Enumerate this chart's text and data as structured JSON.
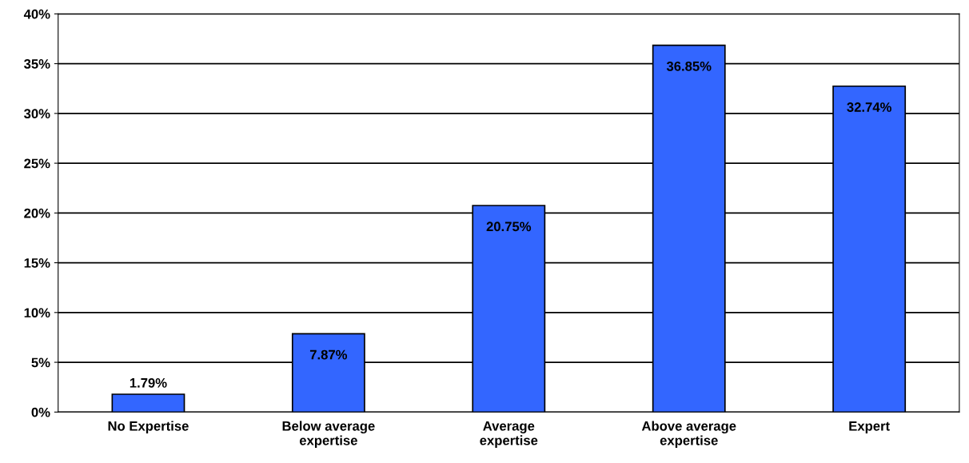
{
  "chart_data": {
    "type": "bar",
    "categories": [
      "No Expertise",
      "Below average expertise",
      "Average expertise",
      "Above average expertise",
      "Expert"
    ],
    "values": [
      1.79,
      7.87,
      20.75,
      36.85,
      32.74
    ],
    "value_labels": [
      "1.79%",
      "7.87%",
      "20.75%",
      "36.85%",
      "32.74%"
    ],
    "color": "#3366ff",
    "ylim": [
      0,
      40
    ],
    "yticks": [
      {
        "value": 0,
        "label": "0%"
      },
      {
        "value": 5,
        "label": "5%"
      },
      {
        "value": 10,
        "label": "10%"
      },
      {
        "value": 15,
        "label": "15%"
      },
      {
        "value": 20,
        "label": "20%"
      },
      {
        "value": 25,
        "label": "25%"
      },
      {
        "value": 30,
        "label": "30%"
      },
      {
        "value": 35,
        "label": "35%"
      },
      {
        "value": 40,
        "label": "40%"
      }
    ],
    "grid": "y",
    "legend": false
  }
}
